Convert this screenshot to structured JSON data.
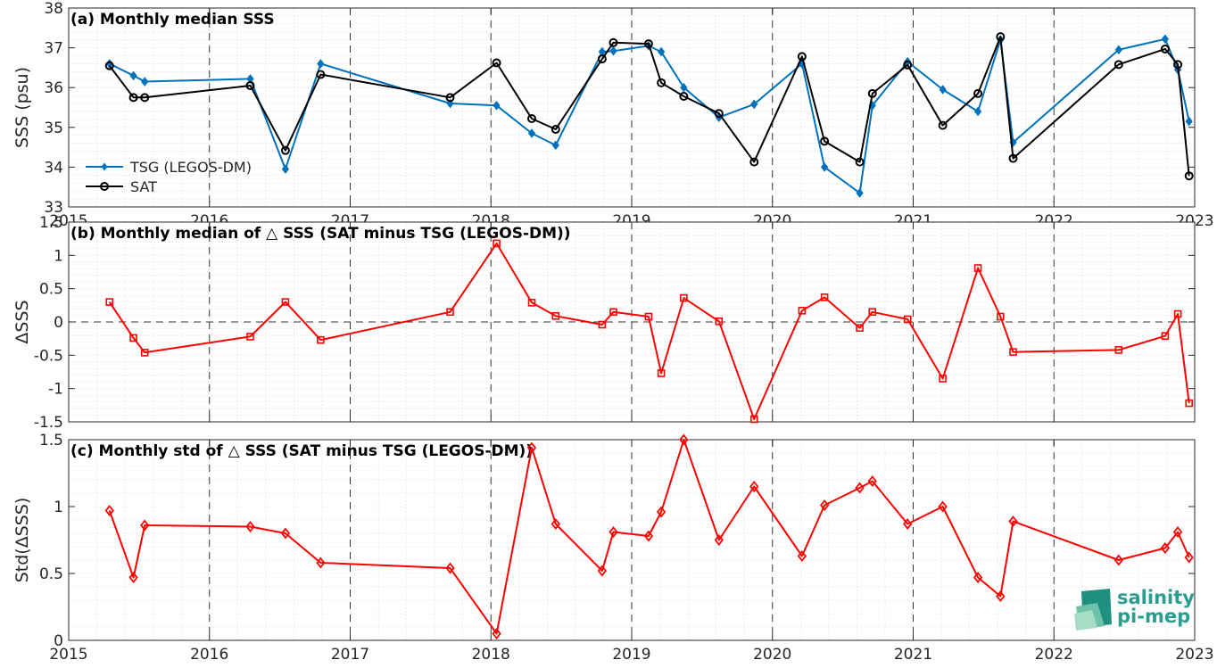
{
  "chart_data": [
    {
      "type": "line",
      "title": "(a) Monthly median SSS",
      "ylabel": "SSS (psu)",
      "ylim": [
        33,
        38
      ],
      "yticks": [
        33,
        34,
        35,
        36,
        37,
        38
      ],
      "xlim": [
        2015,
        2023
      ],
      "xticks": [
        "2015",
        "2016",
        "2017",
        "2018",
        "2019",
        "2020",
        "2021",
        "2022",
        "2023"
      ],
      "grid": "minor dotted, major dashed vertical at years",
      "legend_position": "bottom-left",
      "series": [
        {
          "name": "TSG (LEGOS-DM)",
          "color": "#0072BD",
          "marker": "diamond-filled",
          "x": [
            2015.29,
            2015.46,
            2015.54,
            2016.29,
            2016.54,
            2016.79,
            2017.71,
            2018.04,
            2018.29,
            2018.46,
            2018.79,
            2018.87,
            2019.12,
            2019.21,
            2019.37,
            2019.62,
            2019.87,
            2020.21,
            2020.37,
            2020.62,
            2020.71,
            2020.96,
            2021.21,
            2021.46,
            2021.62,
            2021.71,
            2022.46,
            2022.79,
            2022.88,
            2022.96
          ],
          "values": [
            36.6,
            36.3,
            36.15,
            36.22,
            33.95,
            36.6,
            35.6,
            35.55,
            34.85,
            34.55,
            36.9,
            36.92,
            37.05,
            36.9,
            36.0,
            35.25,
            35.58,
            36.6,
            34.0,
            33.35,
            35.55,
            36.65,
            35.95,
            35.4,
            37.2,
            34.62,
            36.95,
            37.22,
            36.45,
            35.15
          ]
        },
        {
          "name": "SAT",
          "color": "#000000",
          "marker": "circle-open",
          "x": [
            2015.29,
            2015.46,
            2015.54,
            2016.29,
            2016.54,
            2016.79,
            2017.71,
            2018.04,
            2018.29,
            2018.46,
            2018.79,
            2018.87,
            2019.12,
            2019.21,
            2019.37,
            2019.62,
            2019.87,
            2020.21,
            2020.37,
            2020.62,
            2020.71,
            2020.96,
            2021.21,
            2021.46,
            2021.62,
            2021.71,
            2022.46,
            2022.79,
            2022.88,
            2022.96
          ],
          "values": [
            36.55,
            35.75,
            35.75,
            36.05,
            34.42,
            36.33,
            35.75,
            36.62,
            35.22,
            34.95,
            36.72,
            37.13,
            37.1,
            36.12,
            35.78,
            35.35,
            34.13,
            36.78,
            34.65,
            34.13,
            35.85,
            36.57,
            35.05,
            35.85,
            37.28,
            34.22,
            36.58,
            36.97,
            36.58,
            33.78
          ]
        }
      ]
    },
    {
      "type": "line",
      "title": "(b) Monthly median of △ SSS (SAT minus TSG (LEGOS-DM))",
      "ylabel": "ΔSSS",
      "ylim": [
        -1.5,
        1.5
      ],
      "yticks": [
        "-1.5",
        "-1",
        "-0.5",
        "0",
        "0.5",
        "1",
        "1.5"
      ],
      "xlim": [
        2015,
        2023
      ],
      "zero_line": "dashed",
      "series": [
        {
          "color": "#FF0000",
          "marker": "square-open",
          "x": [
            2015.29,
            2015.46,
            2015.54,
            2016.29,
            2016.54,
            2016.79,
            2017.71,
            2018.04,
            2018.29,
            2018.46,
            2018.79,
            2018.87,
            2019.12,
            2019.21,
            2019.37,
            2019.62,
            2019.87,
            2020.21,
            2020.37,
            2020.62,
            2020.71,
            2020.96,
            2021.21,
            2021.46,
            2021.62,
            2021.71,
            2022.46,
            2022.79,
            2022.88,
            2022.96
          ],
          "values": [
            0.3,
            -0.24,
            -0.46,
            -0.22,
            0.3,
            -0.27,
            0.15,
            1.18,
            0.29,
            0.09,
            -0.04,
            0.15,
            0.08,
            -0.77,
            0.36,
            0.01,
            -1.46,
            0.17,
            0.37,
            -0.09,
            0.15,
            0.04,
            -0.85,
            0.81,
            0.08,
            -0.45,
            -0.42,
            -0.21,
            0.12,
            -1.22
          ]
        }
      ]
    },
    {
      "type": "line",
      "title": "(c) Monthly std of △ SSS (SAT minus TSG (LEGOS-DM))",
      "ylabel": "Std(ΔSSS)",
      "ylim": [
        0,
        1.5
      ],
      "yticks": [
        "0",
        "0.5",
        "1",
        "1.5"
      ],
      "xlim": [
        2015,
        2023
      ],
      "xticks": [
        "2015",
        "2016",
        "2017",
        "2018",
        "2019",
        "2020",
        "2021",
        "2022",
        "2023"
      ],
      "series": [
        {
          "color": "#FF0000",
          "marker": "diamond-open",
          "x": [
            2015.29,
            2015.46,
            2015.54,
            2016.29,
            2016.54,
            2016.79,
            2017.71,
            2018.04,
            2018.29,
            2018.46,
            2018.79,
            2018.87,
            2019.12,
            2019.21,
            2019.37,
            2019.62,
            2019.87,
            2020.21,
            2020.37,
            2020.62,
            2020.71,
            2020.96,
            2021.21,
            2021.46,
            2021.62,
            2021.71,
            2022.46,
            2022.79,
            2022.88,
            2022.96
          ],
          "values": [
            0.97,
            0.47,
            0.86,
            0.85,
            0.8,
            0.58,
            0.54,
            0.05,
            1.44,
            0.87,
            0.52,
            0.81,
            0.78,
            0.96,
            1.5,
            0.75,
            1.15,
            0.63,
            1.01,
            1.14,
            1.19,
            0.87,
            1.0,
            0.47,
            0.33,
            0.89,
            0.6,
            0.69,
            0.81,
            0.62
          ]
        }
      ]
    }
  ],
  "logo": {
    "line1": "salinity",
    "line2": "pi-mep",
    "color": "#2a9d8f"
  }
}
